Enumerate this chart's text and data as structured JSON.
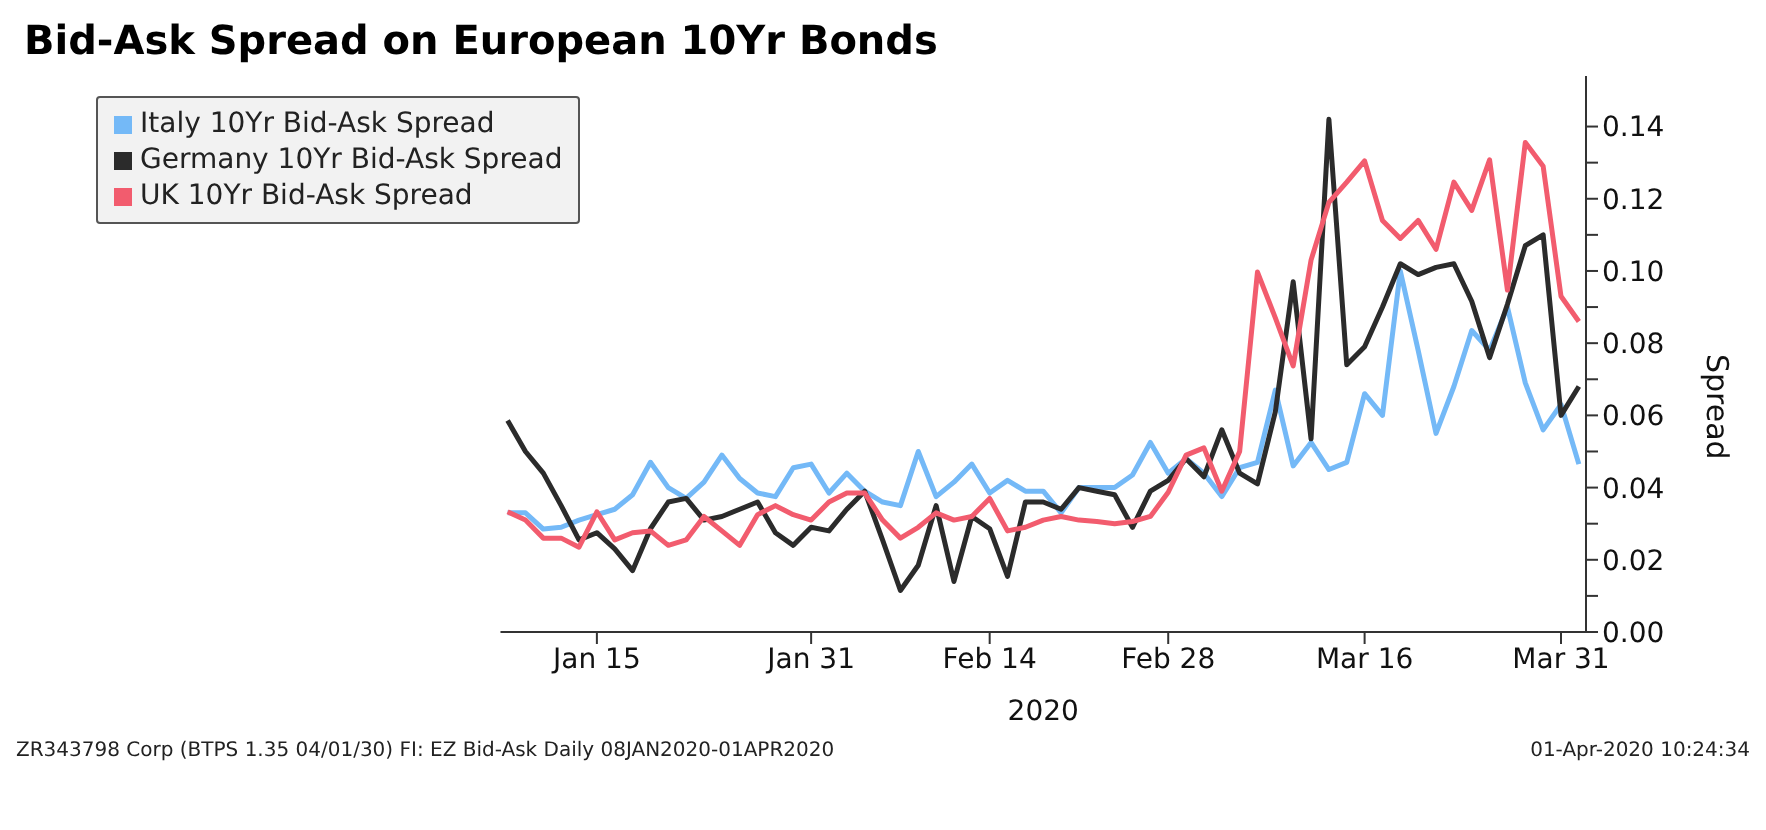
{
  "chart_data": {
    "type": "line",
    "title": "Bid-Ask Spread on European 10Yr Bonds",
    "xlabel": "2020",
    "ylabel": "Spread",
    "categories": [
      null,
      null,
      null,
      null,
      null,
      "Jan 15",
      null,
      null,
      null,
      null,
      null,
      null,
      null,
      null,
      null,
      null,
      null,
      "Jan 31",
      null,
      null,
      null,
      null,
      null,
      null,
      null,
      null,
      null,
      "Feb 14",
      null,
      null,
      null,
      null,
      null,
      null,
      null,
      null,
      null,
      "Feb 28",
      null,
      null,
      null,
      null,
      null,
      null,
      null,
      null,
      null,
      null,
      "Mar 16",
      null,
      null,
      null,
      null,
      null,
      null,
      null,
      null,
      null,
      null,
      "Mar 31",
      null
    ],
    "series": [
      {
        "name": "Italy 10Yr Bid-Ask Spread",
        "color": "#74b9f7",
        "values": [
          0.033,
          0.033,
          0.0285,
          0.029,
          0.031,
          0.0325,
          0.034,
          0.038,
          0.047,
          0.04,
          0.037,
          0.0415,
          0.049,
          0.0425,
          0.0385,
          0.0375,
          0.0455,
          0.0465,
          0.0385,
          0.044,
          0.039,
          0.036,
          0.035,
          0.05,
          0.0375,
          0.0415,
          0.0465,
          0.0385,
          0.042,
          0.039,
          0.039,
          0.033,
          0.04,
          0.04,
          0.04,
          0.0435,
          0.0525,
          0.044,
          0.048,
          0.044,
          0.0375,
          0.0455,
          0.047,
          0.067,
          0.046,
          0.0525,
          0.045,
          0.047,
          0.066,
          0.06,
          0.1,
          0.078,
          0.055,
          0.068,
          0.0835,
          0.078,
          0.09,
          0.069,
          0.056,
          0.063,
          0.0465
        ]
      },
      {
        "name": "Germany 10Yr Bid-Ask Spread",
        "color": "#2b2b2b",
        "values": [
          0.0586,
          0.05,
          0.044,
          0.035,
          0.0255,
          0.0275,
          0.023,
          0.017,
          0.0286,
          0.036,
          0.037,
          0.031,
          0.032,
          0.034,
          0.036,
          0.0275,
          0.024,
          0.029,
          0.028,
          0.034,
          0.039,
          0.0255,
          0.0115,
          0.0185,
          0.035,
          0.014,
          0.032,
          0.0286,
          0.0154,
          0.036,
          0.036,
          0.034,
          0.04,
          0.039,
          0.038,
          0.029,
          0.039,
          0.042,
          0.048,
          0.043,
          0.056,
          0.044,
          0.041,
          0.061,
          0.097,
          0.0535,
          0.142,
          0.074,
          0.079,
          0.09,
          0.102,
          0.099,
          0.101,
          0.102,
          0.0916,
          0.076,
          0.0908,
          0.107,
          0.11,
          0.06,
          0.068
        ]
      },
      {
        "name": "UK 10Yr Bid-Ask Spread",
        "color": "#f25c6e",
        "values": [
          0.0333,
          0.031,
          0.026,
          0.026,
          0.0235,
          0.0333,
          0.0255,
          0.0275,
          0.028,
          0.024,
          0.0255,
          0.032,
          0.028,
          0.024,
          0.0325,
          0.035,
          0.0325,
          0.031,
          0.036,
          0.0385,
          0.0385,
          0.031,
          0.026,
          0.029,
          0.033,
          0.031,
          0.032,
          0.037,
          0.028,
          0.029,
          0.031,
          0.032,
          0.031,
          0.0306,
          0.03,
          0.0306,
          0.032,
          0.0387,
          0.049,
          0.051,
          0.039,
          0.05,
          0.0997,
          0.087,
          0.0737,
          0.103,
          0.119,
          0.1246,
          0.1305,
          0.114,
          0.109,
          0.114,
          0.106,
          0.1246,
          0.1168,
          0.1308,
          0.0947,
          0.1356,
          0.129,
          0.093,
          0.086
        ]
      }
    ],
    "ylim": [
      0,
      0.154
    ],
    "yticks": [
      {
        "value": 0,
        "label": "0.00"
      },
      {
        "value": 0.01,
        "label": null
      },
      0.02,
      {
        "value": 0.03,
        "label": null
      },
      0.04,
      {
        "value": 0.05,
        "label": null
      },
      0.06,
      {
        "value": 0.07,
        "label": null
      },
      0.08,
      {
        "value": 0.09,
        "label": null
      },
      {
        "value": 0.1,
        "label": "0.10"
      },
      {
        "value": 0.11,
        "label": null
      },
      0.12,
      {
        "value": 0.13,
        "label": null
      },
      0.14
    ],
    "grid": false,
    "legend": "top left",
    "marker": "none",
    "line_style": "solid",
    "annotations": [
      "ZR343798 Corp (BTPS 1.35 04/01/30) FI: EZ Bid-Ask  Daily 08JAN2020-01APR2020",
      "01-Apr-2020 10:24:34"
    ]
  }
}
